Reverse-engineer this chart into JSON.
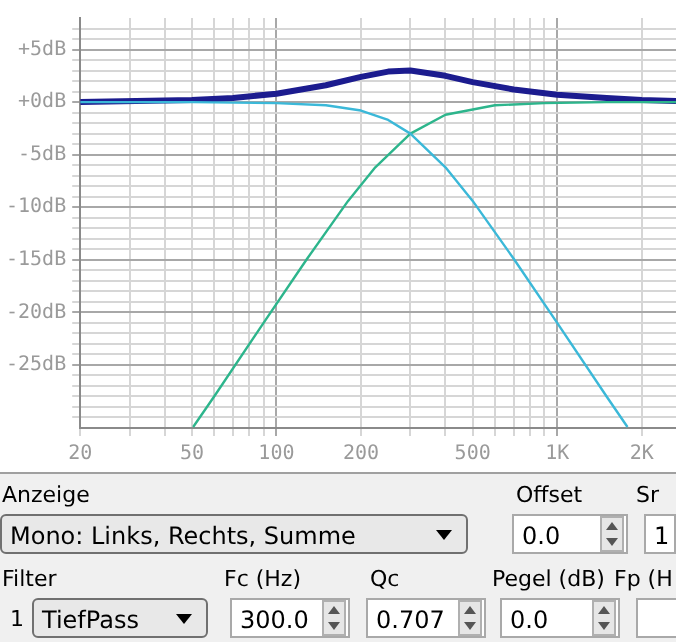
{
  "chart_data": {
    "type": "line",
    "log": "x",
    "grid": true,
    "xlim": [
      20,
      2650
    ],
    "ylim": [
      -31,
      8
    ],
    "xticks": [
      {
        "value": 20,
        "label": "20"
      },
      {
        "value": 30,
        "label": null
      },
      {
        "value": 40,
        "label": null
      },
      {
        "value": 50,
        "label": "50"
      },
      {
        "value": 60,
        "label": null
      },
      {
        "value": 70,
        "label": null
      },
      {
        "value": 80,
        "label": null
      },
      {
        "value": 90,
        "label": null
      },
      {
        "value": 100,
        "label": "100"
      },
      {
        "value": 200,
        "label": "200"
      },
      {
        "value": 300,
        "label": null
      },
      {
        "value": 400,
        "label": null
      },
      {
        "value": 500,
        "label": "500"
      },
      {
        "value": 600,
        "label": null
      },
      {
        "value": 700,
        "label": null
      },
      {
        "value": 800,
        "label": null
      },
      {
        "value": 900,
        "label": null
      },
      {
        "value": 1000,
        "label": "1K"
      },
      {
        "value": 2000,
        "label": "2K"
      }
    ],
    "yticks": [
      {
        "value": -30,
        "label": null
      },
      {
        "value": -29,
        "label": null
      },
      {
        "value": -28,
        "label": null
      },
      {
        "value": -27,
        "label": null
      },
      {
        "value": -26,
        "label": null
      },
      {
        "value": -25,
        "label": "-25dB"
      },
      {
        "value": -24,
        "label": null
      },
      {
        "value": -23,
        "label": null
      },
      {
        "value": -22,
        "label": null
      },
      {
        "value": -21,
        "label": null
      },
      {
        "value": -20,
        "label": "-20dB"
      },
      {
        "value": -19,
        "label": null
      },
      {
        "value": -18,
        "label": null
      },
      {
        "value": -17,
        "label": null
      },
      {
        "value": -16,
        "label": null
      },
      {
        "value": -15,
        "label": "-15dB"
      },
      {
        "value": -14,
        "label": null
      },
      {
        "value": -13,
        "label": null
      },
      {
        "value": -12,
        "label": null
      },
      {
        "value": -11,
        "label": null
      },
      {
        "value": -10,
        "label": "-10dB"
      },
      {
        "value": -9,
        "label": null
      },
      {
        "value": -8,
        "label": null
      },
      {
        "value": -7,
        "label": null
      },
      {
        "value": -6,
        "label": null
      },
      {
        "value": -5,
        "label": "-5dB"
      },
      {
        "value": -4,
        "label": null
      },
      {
        "value": -3,
        "label": null
      },
      {
        "value": -2,
        "label": null
      },
      {
        "value": -1,
        "label": null
      },
      {
        "value": 0,
        "label": "+0dB"
      },
      {
        "value": 1,
        "label": null
      },
      {
        "value": 2,
        "label": null
      },
      {
        "value": 3,
        "label": null
      },
      {
        "value": 4,
        "label": null
      },
      {
        "value": 5,
        "label": "+5dB"
      },
      {
        "value": 6,
        "label": null
      },
      {
        "value": 7,
        "label": null
      }
    ],
    "series": [
      {
        "color": "#3bb8d8",
        "x": [
          20,
          50,
          100,
          150,
          200,
          250,
          300,
          400,
          500,
          700,
          1000,
          1500,
          1780
        ],
        "values": [
          0,
          0,
          -0.1,
          -0.3,
          -0.8,
          -1.7,
          -3,
          -6.2,
          -9.4,
          -14.9,
          -21,
          -28,
          -30.9
        ]
      },
      {
        "color": "#2db58c",
        "x": [
          50.5,
          60,
          90,
          128.6,
          180,
          225,
          300,
          400,
          600,
          900,
          1500,
          2650
        ],
        "values": [
          -30.9,
          -28,
          -21,
          -14.9,
          -9.4,
          -6.2,
          -3,
          -1.2,
          -0.3,
          -0.1,
          0,
          0
        ]
      },
      {
        "color": "#1c1c8f",
        "x": [
          20,
          50,
          70,
          100,
          150,
          200,
          250,
          300,
          400,
          500,
          700,
          1000,
          1500,
          2000,
          2650
        ],
        "values": [
          0,
          0.2,
          0.4,
          0.8,
          1.6,
          2.4,
          2.9,
          3.0,
          2.5,
          1.9,
          1.2,
          0.7,
          0.4,
          0.2,
          0.1
        ]
      }
    ],
    "annotations": [
      "Anzeige",
      "Mono: Links, Rechts, Summe",
      "Offset",
      "0.0",
      "Sr",
      "1",
      "Filter",
      "Fc (Hz)",
      "Qc",
      "Pegel (dB)",
      "Fp (H",
      "1",
      "TiefPass",
      "300.0",
      "0.707",
      "0.0"
    ]
  }
}
